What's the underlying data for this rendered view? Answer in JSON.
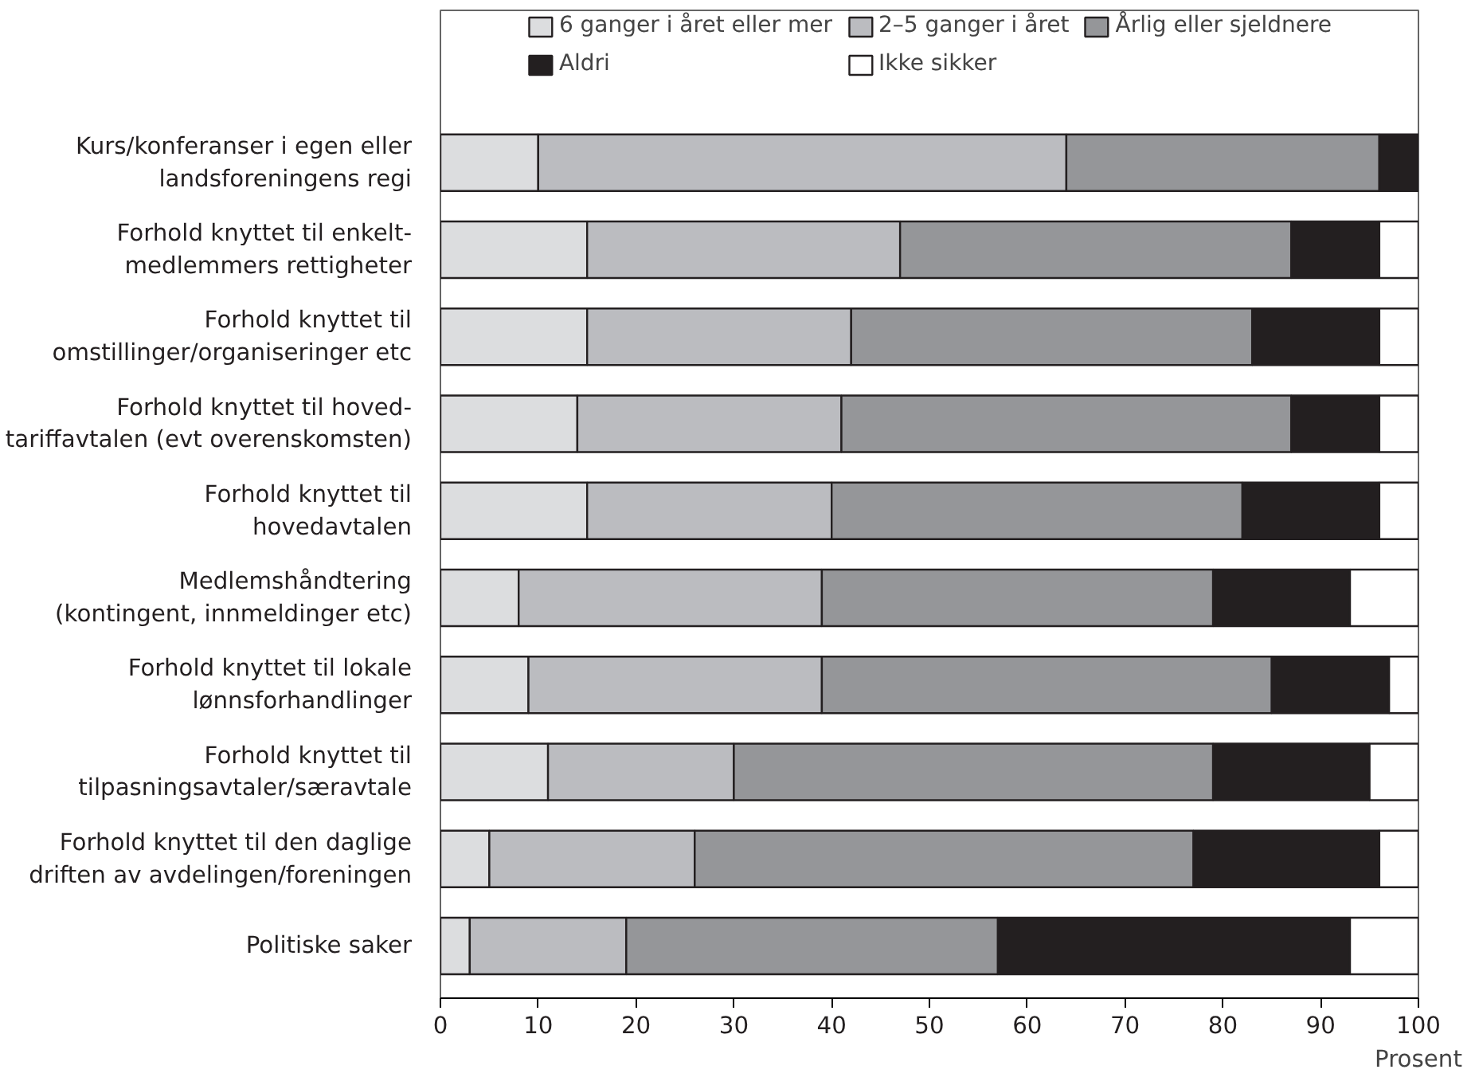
{
  "chart_data": {
    "type": "bar",
    "orientation": "horizontal",
    "stacked": true,
    "xlabel": "Prosent",
    "categories": [
      "Kurs/konferanser i egen eller\nlandsforeningens regi",
      "Forhold knyttet til enkelt-\nmedlemmers rettigheter",
      "Forhold knyttet til\nomstillinger/organiseringer etc",
      "Forhold knyttet til hoved-\ntariffavtalen (evt overenskomsten)",
      "Forhold knyttet til\nhovedavtalen",
      "Medlemshåndtering\n(kontingent, innmeldinger etc)",
      "Forhold knyttet til lokale\nlønnsforhandlinger",
      "Forhold knyttet til\ntilpasningsavtaler/særavtale",
      "Forhold knyttet til den daglige\ndriften av avdelingen/foreningen",
      "Politiske saker"
    ],
    "series": [
      {
        "name": "6 ganger i året eller mer",
        "color": "#dcdddf",
        "values": [
          10,
          15,
          15,
          14,
          15,
          8,
          9,
          11,
          5,
          3
        ]
      },
      {
        "name": "2–5 ganger i året",
        "color": "#bbbcc0",
        "values": [
          54,
          32,
          27,
          27,
          25,
          31,
          30,
          19,
          21,
          16
        ]
      },
      {
        "name": "Årlig eller sjeldnere",
        "color": "#959699",
        "values": [
          32,
          40,
          41,
          46,
          42,
          40,
          46,
          49,
          51,
          38
        ]
      },
      {
        "name": "Aldri",
        "color": "#231f20",
        "values": [
          4,
          9,
          13,
          9,
          14,
          14,
          12,
          16,
          19,
          36
        ]
      },
      {
        "name": "Ikke sikker",
        "color": "#ffffff",
        "values": [
          0,
          4,
          4,
          4,
          4,
          7,
          3,
          5,
          4,
          7
        ]
      }
    ],
    "xlim": [
      0,
      100
    ],
    "xticks": [
      0,
      10,
      20,
      30,
      40,
      50,
      60,
      70,
      80,
      90,
      100
    ],
    "grid": false,
    "legend": "top"
  }
}
